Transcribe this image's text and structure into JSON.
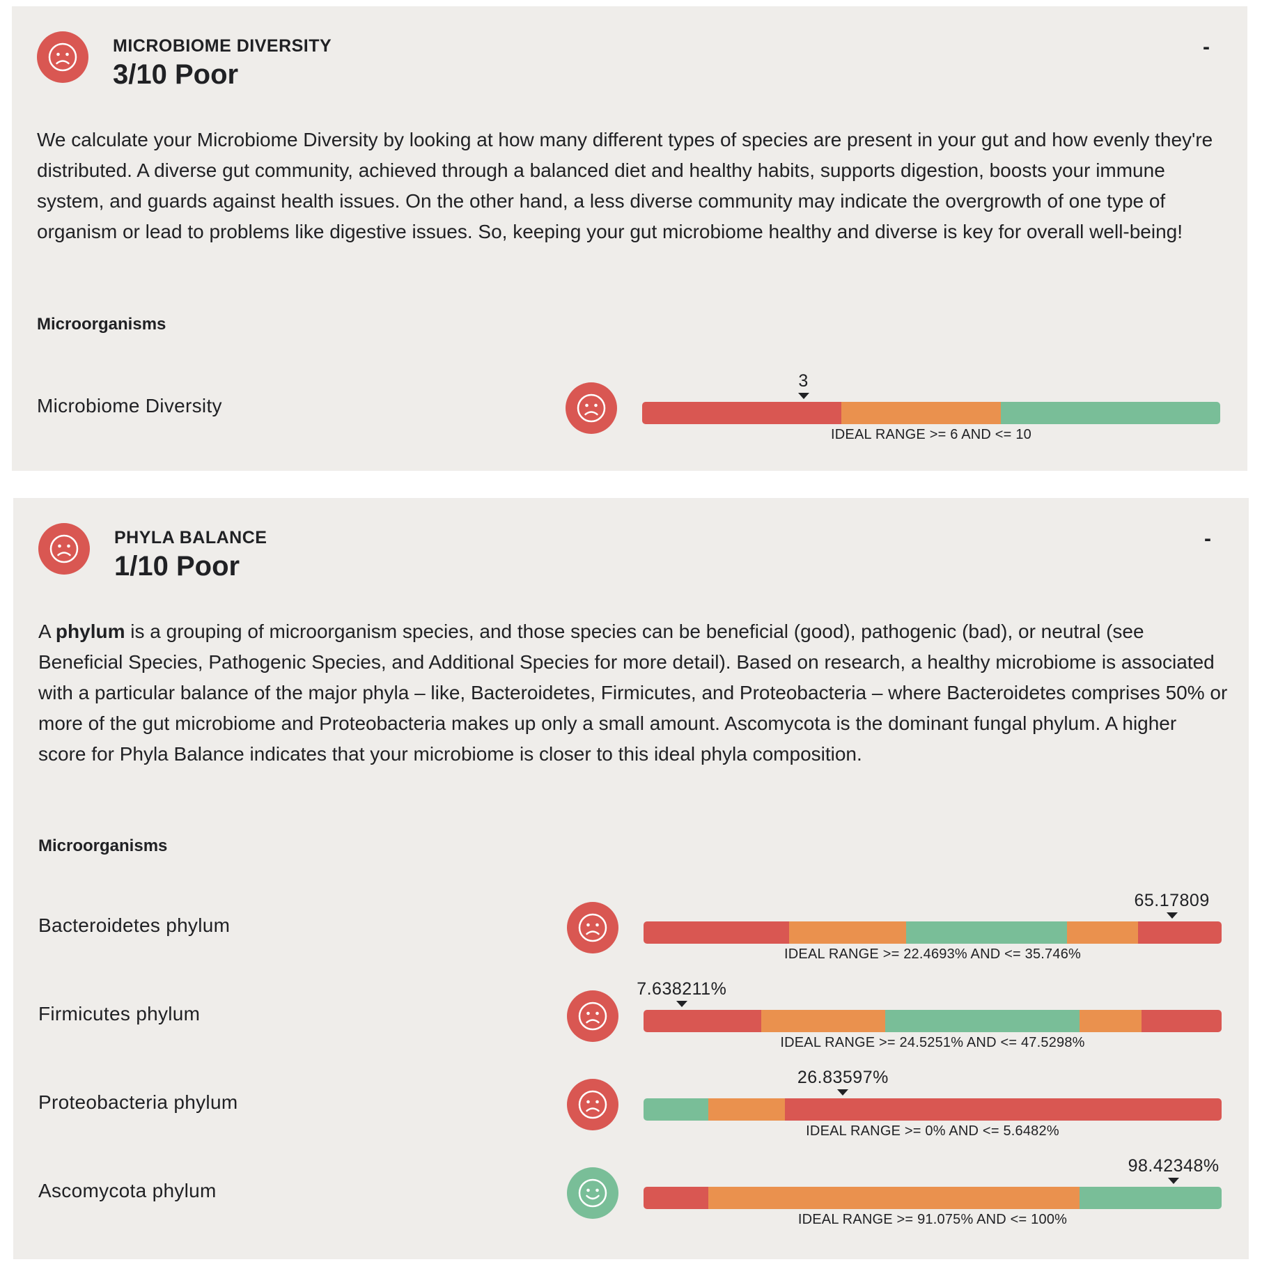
{
  "colors": {
    "poor": "#d95752",
    "mid": "#ea914e",
    "good": "#79be98",
    "card_bg": "#efedea"
  },
  "sections": [
    {
      "label": "MICROBIOME DIVERSITY",
      "score": "3/10 Poor",
      "status": "sad",
      "collapse": "-",
      "description": "We calculate your Microbiome Diversity by looking at how many different types of species are present in your gut and how evenly they're distributed. A diverse gut community, achieved through a balanced diet and healthy habits, supports digestion, boosts your immune system, and guards against health issues. On the other hand, a less diverse community may indicate the overgrowth of one type of organism or lead to problems like digestive issues.  So, keeping your gut microbiome healthy and diverse is key for overall well-being!",
      "subtitle": "Microorganisms",
      "rows": [
        {
          "name": "Microbiome Diversity",
          "status": "sad",
          "value_label": "3",
          "marker_fraction": 0.279,
          "segments": [
            {
              "color": "poor",
              "fraction": 0.344
            },
            {
              "color": "mid",
              "fraction": 0.276
            },
            {
              "color": "good",
              "fraction": 0.38
            }
          ],
          "ideal": "IDEAL RANGE >= 6 AND <= 10"
        }
      ]
    },
    {
      "label": "PHYLA BALANCE",
      "score": "1/10 Poor",
      "status": "sad",
      "collapse": "-",
      "description_lead": "A ",
      "description_bold": "phylum",
      "description": " is a grouping of microorganism species, and those species can be beneficial (good), pathogenic (bad), or neutral (see Beneficial Species, Pathogenic Species, and Additional Species for more detail). Based on research, a healthy microbiome is associated with a particular balance of the major phyla – like, Bacteroidetes, Firmicutes, and Proteobacteria – where Bacteroidetes comprises 50% or more of the gut microbiome and Proteobacteria makes up only a small amount. Ascomycota is the dominant fungal phylum. A higher score for Phyla Balance indicates that your microbiome is closer to this ideal phyla composition.",
      "subtitle": "Microorganisms",
      "rows": [
        {
          "name": "Bacteroidetes phylum",
          "status": "sad",
          "value_label": "65.17809",
          "marker_fraction": 0.914,
          "segments": [
            {
              "color": "poor",
              "fraction": 0.252
            },
            {
              "color": "mid",
              "fraction": 0.202
            },
            {
              "color": "good",
              "fraction": 0.278
            },
            {
              "color": "mid",
              "fraction": 0.123
            },
            {
              "color": "poor",
              "fraction": 0.145
            }
          ],
          "ideal": "IDEAL RANGE >= 22.4693% AND <= 35.746%"
        },
        {
          "name": "Firmicutes phylum",
          "status": "sad",
          "value_label": "7.638211%",
          "marker_fraction": 0.066,
          "segments": [
            {
              "color": "poor",
              "fraction": 0.204
            },
            {
              "color": "mid",
              "fraction": 0.214
            },
            {
              "color": "good",
              "fraction": 0.336
            },
            {
              "color": "mid",
              "fraction": 0.108
            },
            {
              "color": "poor",
              "fraction": 0.138
            }
          ],
          "ideal": "IDEAL RANGE >= 24.5251% AND <= 47.5298%"
        },
        {
          "name": "Proteobacteria phylum",
          "status": "sad",
          "value_label": "26.83597%",
          "marker_fraction": 0.345,
          "segments": [
            {
              "color": "good",
              "fraction": 0.112
            },
            {
              "color": "mid",
              "fraction": 0.133
            },
            {
              "color": "poor",
              "fraction": 0.755
            }
          ],
          "ideal": "IDEAL RANGE >= 0% AND <= 5.6482%"
        },
        {
          "name": "Ascomycota phylum",
          "status": "happy",
          "value_label": "98.42348%",
          "marker_fraction": 0.917,
          "segments": [
            {
              "color": "poor",
              "fraction": 0.112
            },
            {
              "color": "mid",
              "fraction": 0.642
            },
            {
              "color": "good",
              "fraction": 0.246
            }
          ],
          "ideal": "IDEAL RANGE >= 91.075% AND <= 100%"
        }
      ]
    }
  ]
}
